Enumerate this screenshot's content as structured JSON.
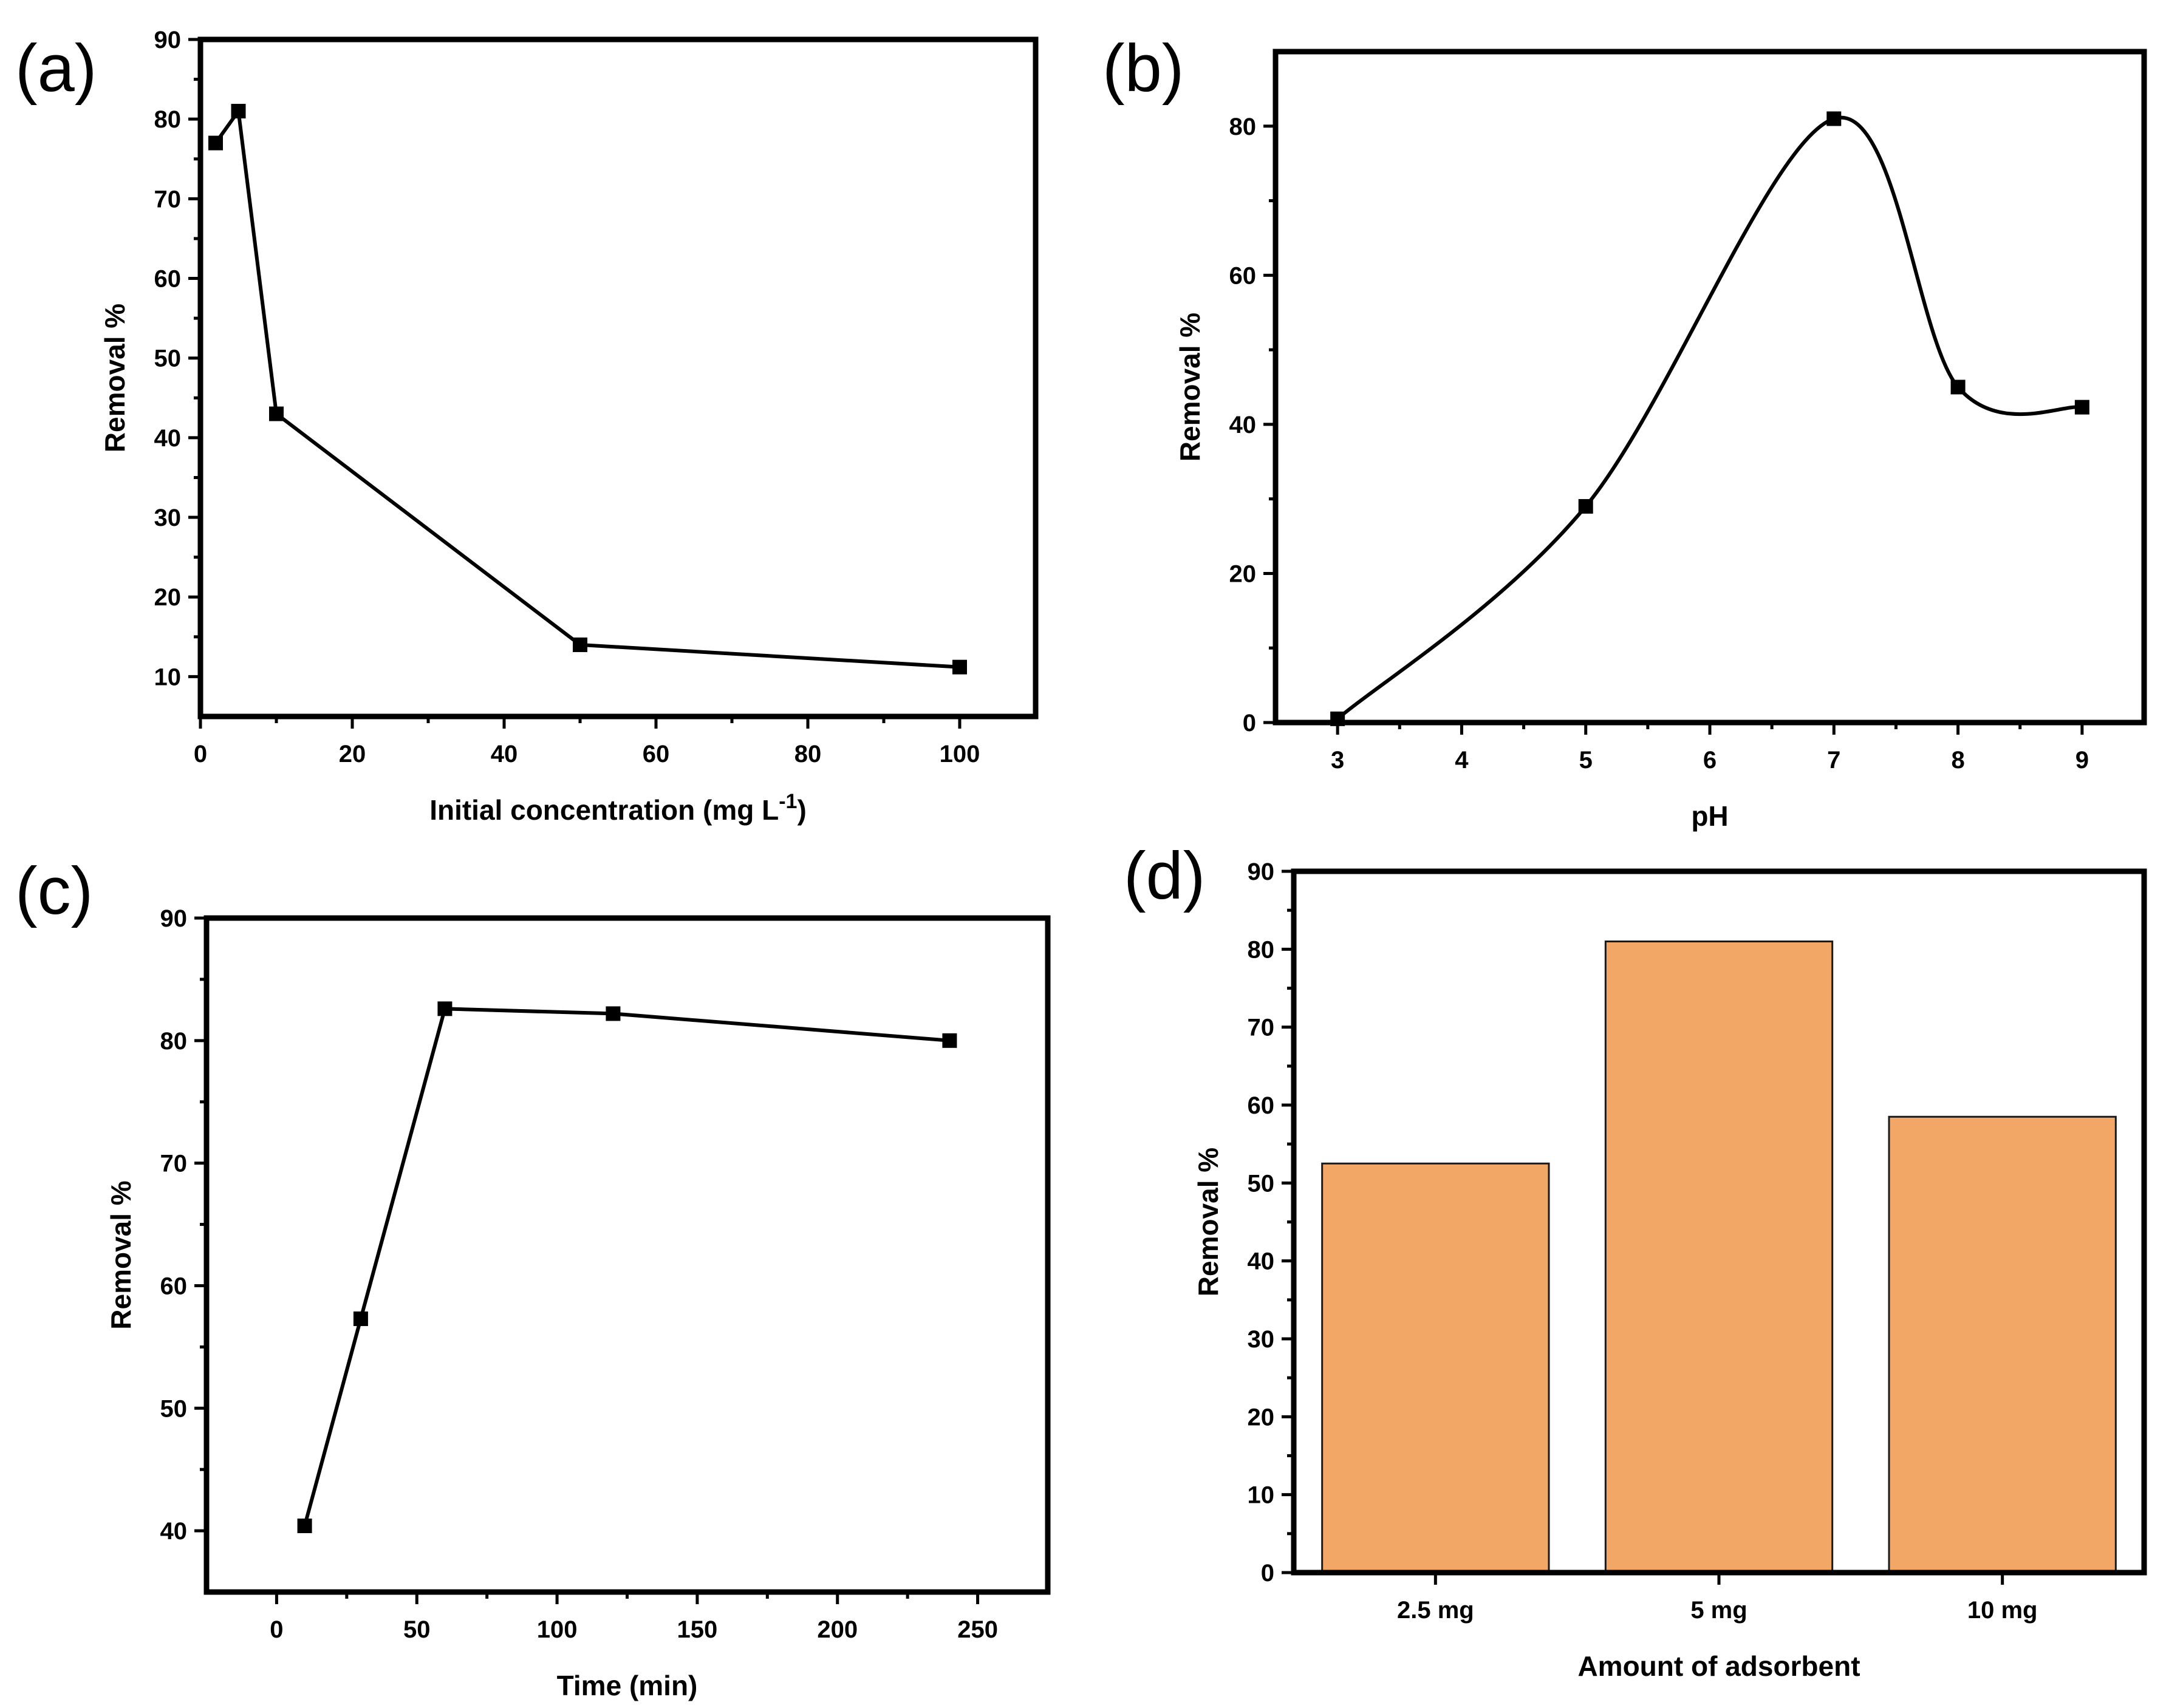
{
  "chart_data": [
    {
      "panel": "(a)",
      "type": "line",
      "xlabel": "Initial concentration (mg L",
      "xlabel_sup": "-1",
      "xlabel_end": ")",
      "ylabel": "Removal %",
      "xlim": [
        0,
        110
      ],
      "ylim": [
        5,
        90
      ],
      "xticks": [
        0,
        20,
        40,
        60,
        80,
        100
      ],
      "yticks": [
        10,
        20,
        30,
        40,
        50,
        60,
        70,
        80,
        90
      ],
      "x": [
        2,
        5,
        10,
        50,
        100
      ],
      "y": [
        77,
        81,
        43,
        14,
        11.2
      ]
    },
    {
      "panel": "(b)",
      "type": "line",
      "smooth": true,
      "xlabel": "pH",
      "ylabel": "Removal %",
      "xlim": [
        2.5,
        9.5
      ],
      "ylim": [
        0,
        90
      ],
      "xticks": [
        3,
        4,
        5,
        6,
        7,
        8,
        9
      ],
      "yticks": [
        0,
        20,
        40,
        60,
        80
      ],
      "x": [
        3,
        5,
        7,
        8,
        9
      ],
      "y": [
        0.5,
        29,
        81,
        45,
        42.3
      ]
    },
    {
      "panel": "(c)",
      "type": "line",
      "xlabel": "Time (min)",
      "ylabel": "Removal %",
      "xlim": [
        -25,
        275
      ],
      "ylim": [
        35,
        90
      ],
      "xticks": [
        0,
        50,
        100,
        150,
        200,
        250
      ],
      "yticks": [
        40,
        50,
        60,
        70,
        80,
        90
      ],
      "x": [
        10,
        30,
        60,
        120,
        240
      ],
      "y": [
        40.4,
        57.3,
        82.6,
        82.2,
        80.0
      ]
    },
    {
      "panel": "(d)",
      "type": "bar",
      "xlabel": "Amount of adsorbent",
      "ylabel": "Removal %",
      "ylim": [
        0,
        90
      ],
      "yticks": [
        0,
        10,
        20,
        30,
        40,
        50,
        60,
        70,
        80,
        90
      ],
      "categories": [
        "2.5 mg",
        "5 mg",
        "10 mg"
      ],
      "values": [
        52.5,
        81,
        58.5
      ],
      "bar_color": "#f2a766"
    }
  ]
}
